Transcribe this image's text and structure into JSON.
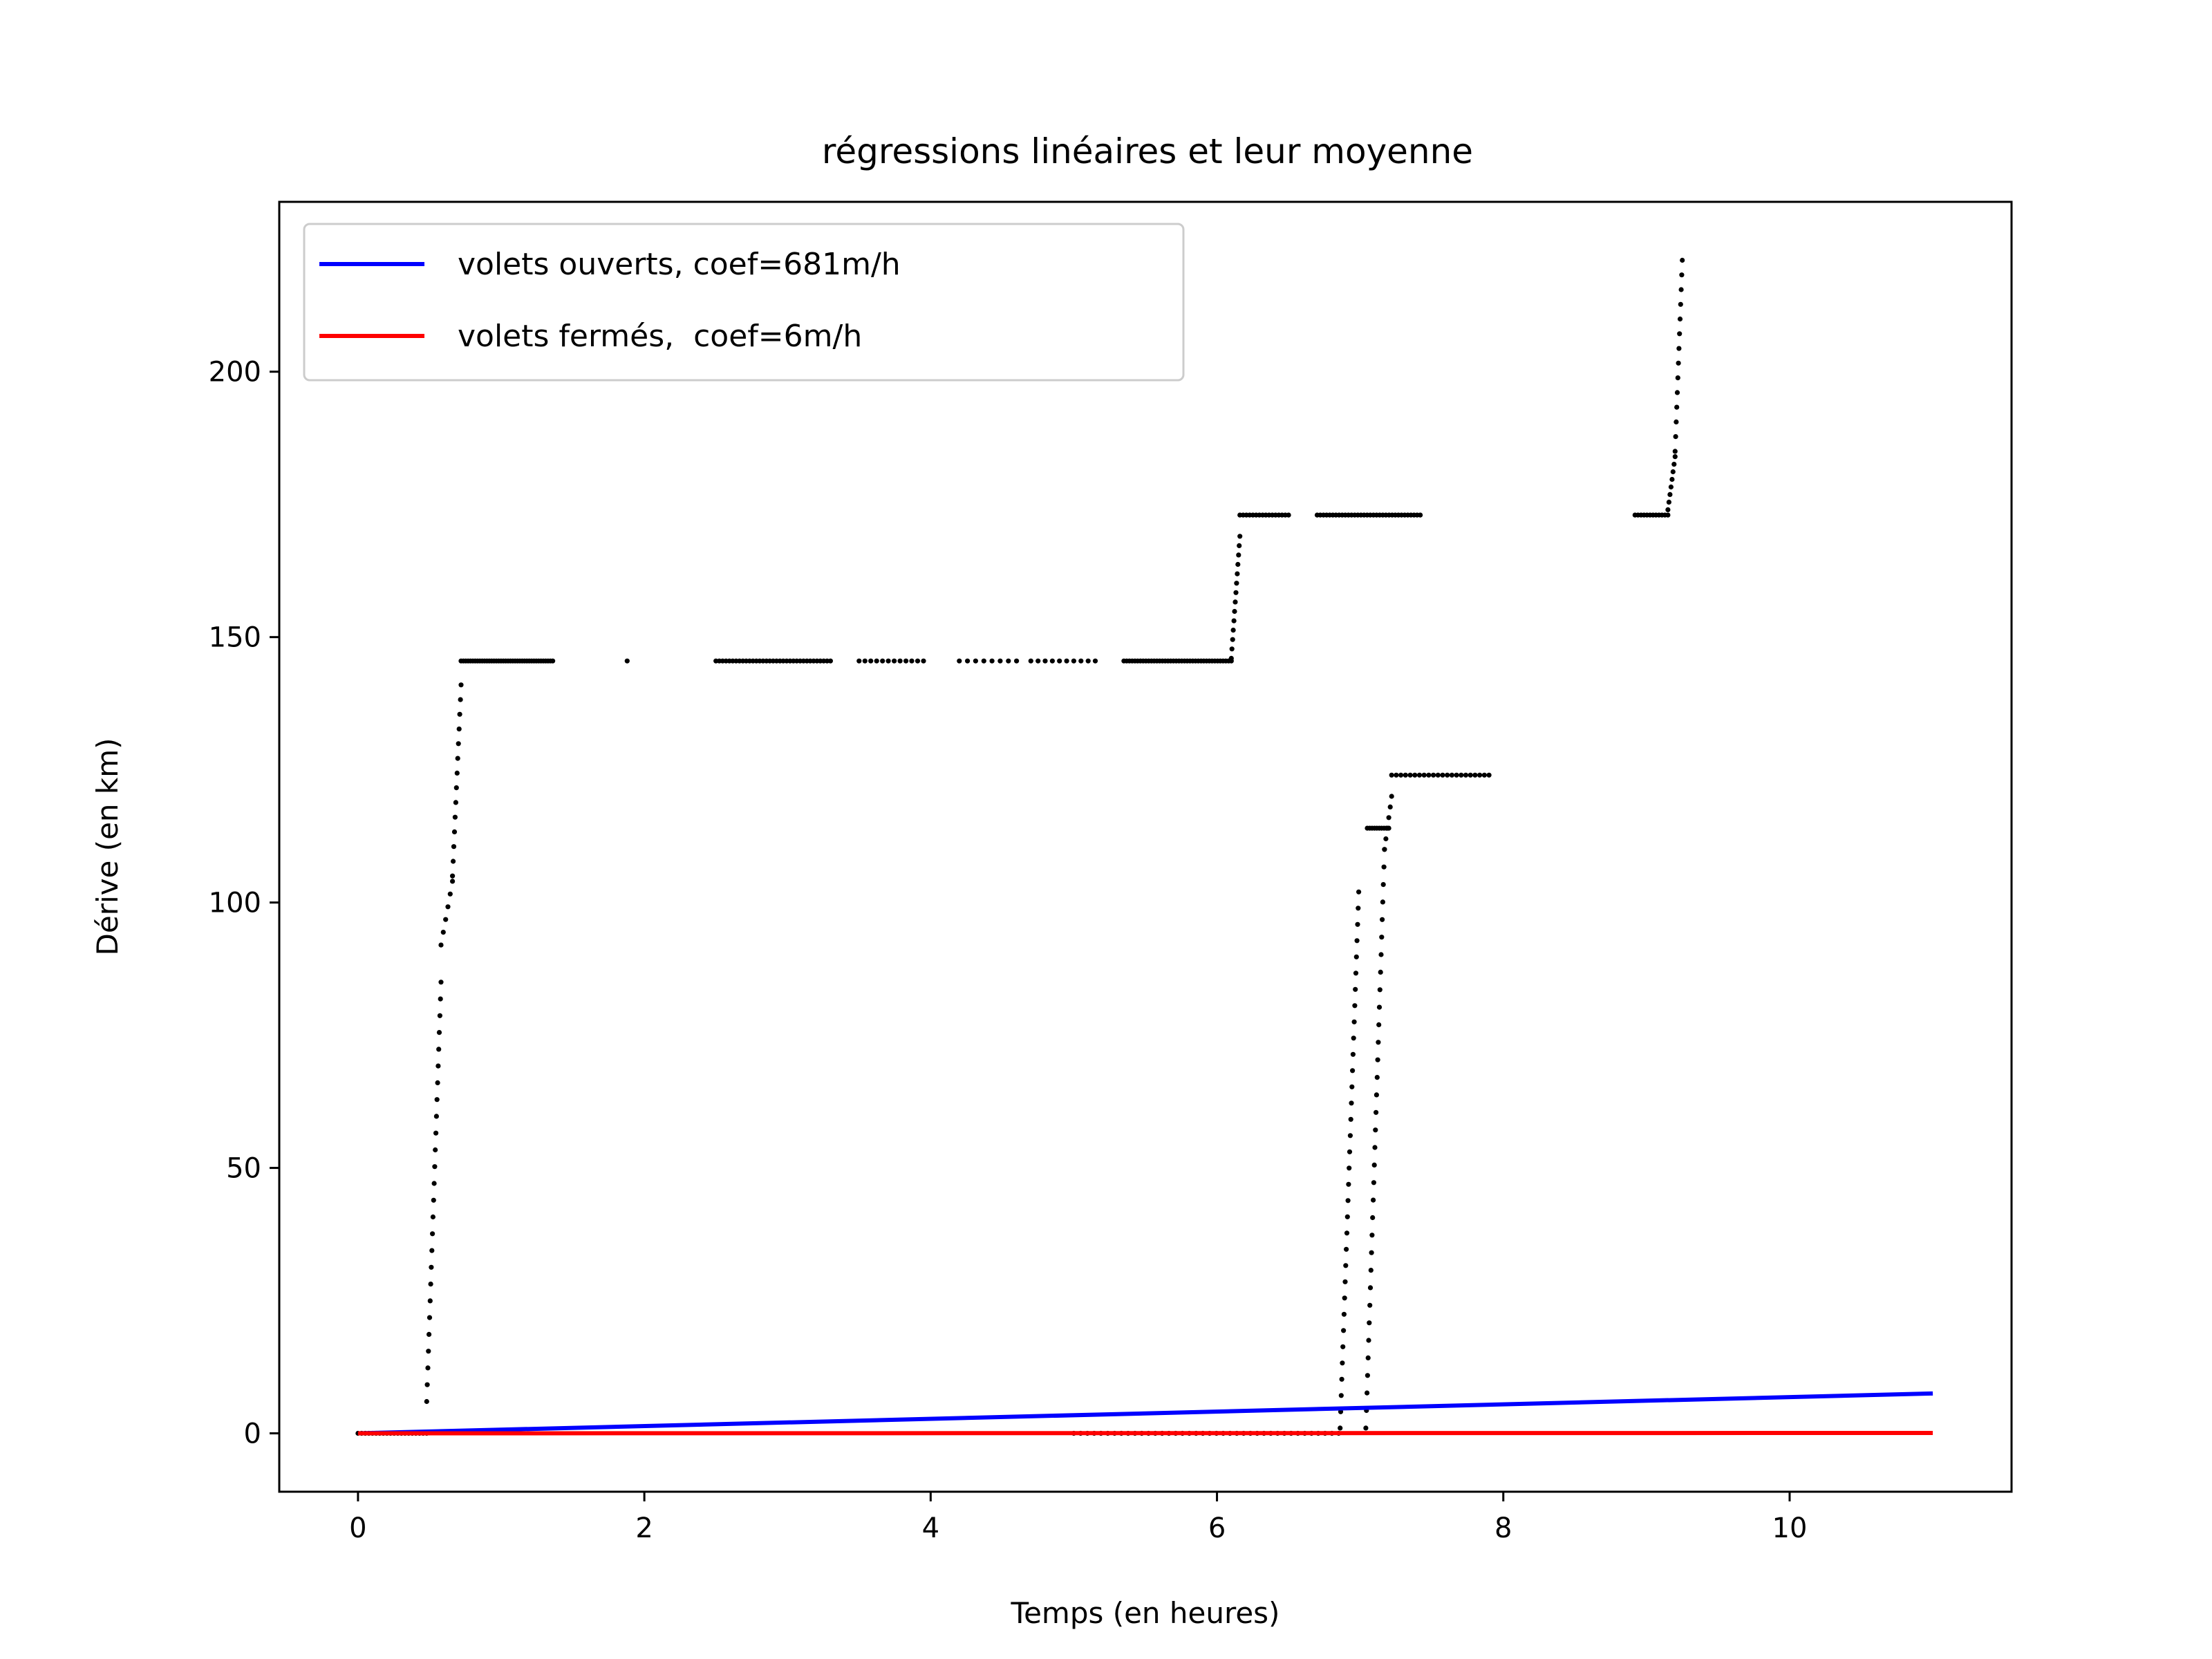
{
  "chart_data": {
    "type": "scatter",
    "title": "régressions linéaires et leur moyenne",
    "xlabel": "Temps (en heures)",
    "ylabel": "Dérive (en km)",
    "xlim": [
      -0.55,
      11.55
    ],
    "ylim": [
      -11,
      232
    ],
    "xticks": [
      0,
      2,
      4,
      6,
      8,
      10
    ],
    "yticks": [
      0,
      50,
      100,
      150,
      200
    ],
    "grid": false,
    "legend_position": "upper-left",
    "lines": [
      {
        "name": "volets ouverts, coef=681m/h",
        "color": "#0000ff",
        "x": [
          0,
          11
        ],
        "y": [
          0,
          7.5
        ]
      },
      {
        "name": "volets fermés,  coef=6m/h",
        "color": "#ff0000",
        "x": [
          0,
          11
        ],
        "y": [
          0,
          0.07
        ]
      }
    ],
    "points_color": "#000000",
    "point_segments": [
      {
        "x0": 0.0,
        "x1": 0.48,
        "y0": 0,
        "y1": 0,
        "n": 20
      },
      {
        "x0": 0.48,
        "x1": 0.58,
        "y0": 6,
        "y1": 85,
        "n": 26
      },
      {
        "x0": 0.58,
        "x1": 0.66,
        "y0": 92,
        "y1": 104,
        "n": 6
      },
      {
        "x0": 0.66,
        "x1": 0.72,
        "y0": 105,
        "y1": 141,
        "n": 14
      },
      {
        "x0": 0.72,
        "x1": 1.36,
        "y0": 145.5,
        "y1": 145.5,
        "n": 40
      },
      {
        "x0": 1.88,
        "x1": 1.88,
        "y0": 145.5,
        "y1": 145.5,
        "n": 1
      },
      {
        "x0": 2.5,
        "x1": 3.3,
        "y0": 145.5,
        "y1": 145.5,
        "n": 35
      },
      {
        "x0": 3.5,
        "x1": 3.95,
        "y0": 145.5,
        "y1": 145.5,
        "n": 12
      },
      {
        "x0": 4.2,
        "x1": 4.6,
        "y0": 145.5,
        "y1": 145.5,
        "n": 8
      },
      {
        "x0": 4.7,
        "x1": 5.15,
        "y0": 145.5,
        "y1": 145.5,
        "n": 10
      },
      {
        "x0": 5.35,
        "x1": 6.1,
        "y0": 145.5,
        "y1": 145.5,
        "n": 40
      },
      {
        "x0": 6.1,
        "x1": 6.16,
        "y0": 146,
        "y1": 169,
        "n": 14
      },
      {
        "x0": 6.16,
        "x1": 6.5,
        "y0": 173,
        "y1": 173,
        "n": 16
      },
      {
        "x0": 6.7,
        "x1": 7.42,
        "y0": 173,
        "y1": 173,
        "n": 34
      },
      {
        "x0": 5.0,
        "x1": 6.85,
        "y0": 0,
        "y1": 0,
        "n": 40
      },
      {
        "x0": 6.86,
        "x1": 6.99,
        "y0": 1,
        "y1": 102,
        "n": 34
      },
      {
        "x0": 7.04,
        "x1": 7.17,
        "y0": 1,
        "y1": 110,
        "n": 34
      },
      {
        "x0": 7.05,
        "x1": 7.2,
        "y0": 114,
        "y1": 114,
        "n": 10
      },
      {
        "x0": 7.17,
        "x1": 7.22,
        "y0": 110,
        "y1": 120,
        "n": 6
      },
      {
        "x0": 7.22,
        "x1": 7.9,
        "y0": 124,
        "y1": 124,
        "n": 22
      },
      {
        "x0": 8.92,
        "x1": 9.15,
        "y0": 173,
        "y1": 173,
        "n": 12
      },
      {
        "x0": 9.15,
        "x1": 9.2,
        "y0": 174,
        "y1": 184,
        "n": 8
      },
      {
        "x0": 9.2,
        "x1": 9.25,
        "y0": 185,
        "y1": 221,
        "n": 14
      }
    ]
  }
}
